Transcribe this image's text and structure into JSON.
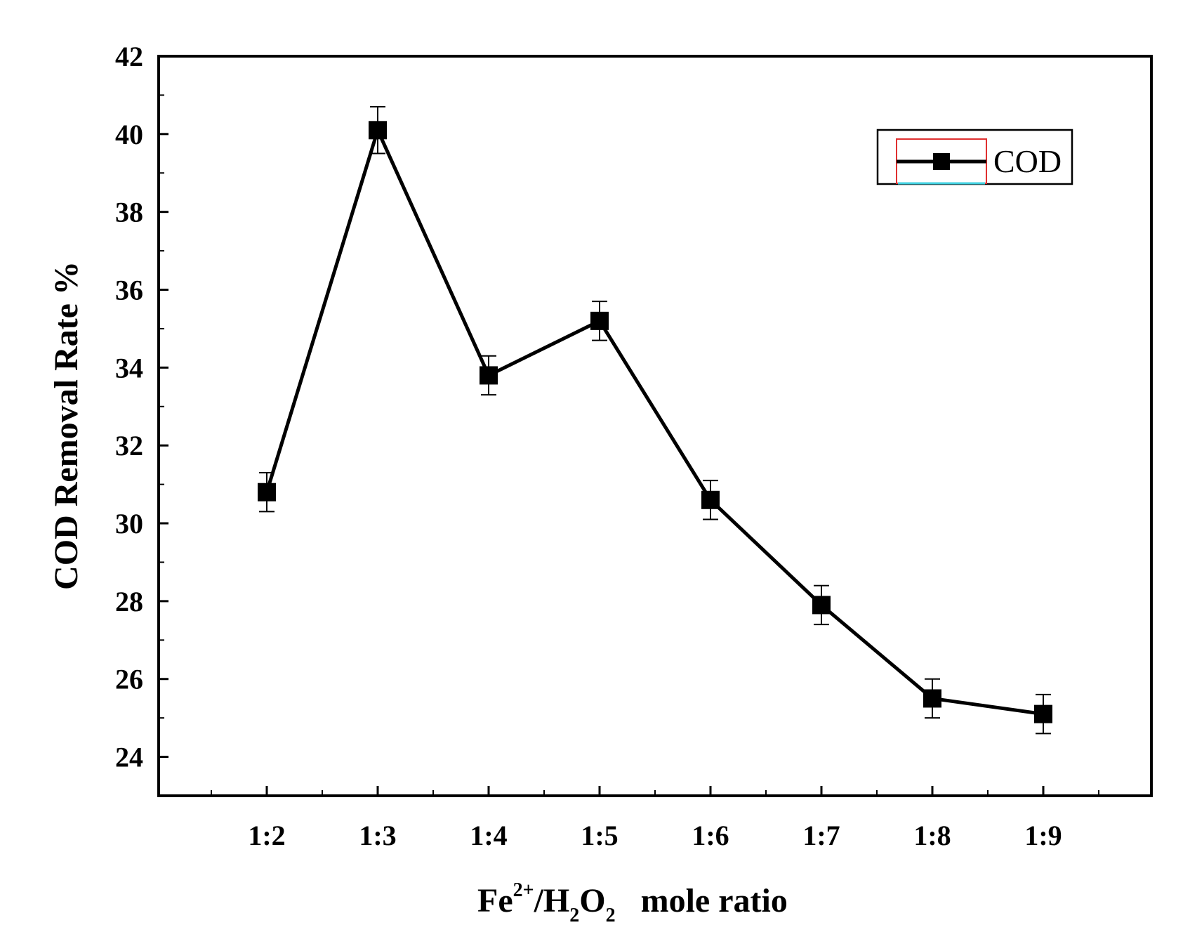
{
  "chart_data": {
    "type": "line",
    "title": "",
    "xlabel": {
      "base1": "Fe",
      "sup": "2+",
      "base2": "/H",
      "sub1": "2",
      "base3": "O",
      "sub2": "2",
      "rest": "mole ratio"
    },
    "ylabel": "COD Removal Rate %",
    "categories": [
      "1:2",
      "1:3",
      "1:4",
      "1:5",
      "1:6",
      "1:7",
      "1:8",
      "1:9"
    ],
    "ylim": [
      23,
      42
    ],
    "yticks": [
      "24",
      "26",
      "28",
      "30",
      "32",
      "34",
      "36",
      "38",
      "40",
      "42"
    ],
    "series": [
      {
        "name": "COD",
        "values": [
          30.8,
          40.1,
          33.8,
          35.2,
          30.6,
          27.9,
          25.5,
          25.1
        ],
        "errors": [
          0.5,
          0.6,
          0.5,
          0.5,
          0.5,
          0.5,
          0.5,
          0.5
        ],
        "color": "#000000"
      }
    ],
    "legend": {
      "position": "top-right",
      "border_color": "#000000",
      "frame_color": "#e03030",
      "accent_color": "#40d0e0"
    }
  }
}
